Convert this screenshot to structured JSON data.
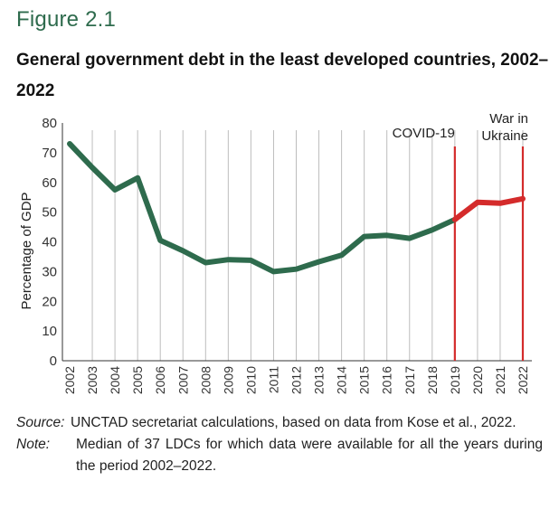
{
  "figure": {
    "label": "Figure 2.1",
    "title": "General government debt in the least developed countries, 2002–2022"
  },
  "chart_data": {
    "type": "line",
    "title": "General government debt in the least developed countries, 2002–2022",
    "xlabel": "",
    "ylabel": "Percentage of GDP",
    "ylim": [
      0,
      80
    ],
    "yticks": [
      "0",
      "10",
      "20",
      "30",
      "40",
      "50",
      "60",
      "70",
      "80"
    ],
    "categories": [
      "2002",
      "2003",
      "2004",
      "2005",
      "2006",
      "2007",
      "2008",
      "2009",
      "2010",
      "2011",
      "2012",
      "2013",
      "2014",
      "2015",
      "2016",
      "2017",
      "2018",
      "2019",
      "2020",
      "2021",
      "2022"
    ],
    "series": [
      {
        "name": "",
        "values": [
          73,
          65,
          57.5,
          61.5,
          40.5,
          37,
          33,
          34,
          33.8,
          30,
          30.8,
          33.3,
          35.5,
          41.8,
          42.2,
          41.2,
          44,
          47.5,
          53.3,
          53,
          54.5
        ],
        "color_before_covid": "#2e6b4d",
        "color_after_covid": "#d42b2b"
      }
    ],
    "grid": "vertical",
    "annotations": [
      {
        "text": "COVID-19",
        "x": "2019",
        "color": "#d42b2b"
      },
      {
        "text": "War in Ukraine",
        "line1": "War in",
        "line2": "Ukraine",
        "x": "2022",
        "color": "#d42b2b"
      }
    ]
  },
  "notes": {
    "source_label": "Source:",
    "source_text": "UNCTAD secretariat calculations, based on data from Kose et al., 2022.",
    "note_label": "Note:",
    "note_text": "Median of 37 LDCs for which data were available for all the years during the period 2002–2022."
  }
}
